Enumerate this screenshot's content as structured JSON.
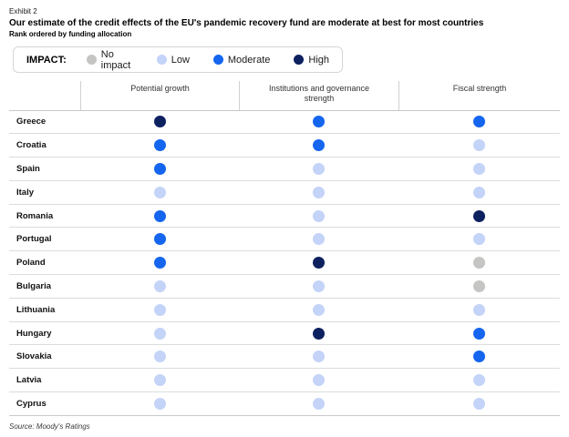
{
  "exhibit_label": "Exhibit 2",
  "title": "Our estimate of the credit effects of the EU's pandemic recovery fund are moderate at best for most countries",
  "subtitle": "Rank ordered by funding allocation",
  "legend": {
    "label": "IMPACT:",
    "items": [
      {
        "key": "no_impact",
        "label": "No impact"
      },
      {
        "key": "low",
        "label": "Low"
      },
      {
        "key": "moderate",
        "label": "Moderate"
      },
      {
        "key": "high",
        "label": "High"
      }
    ]
  },
  "colors": {
    "no_impact": "#c5c5c3",
    "low": "#c4d3f8",
    "moderate": "#1565ef",
    "high": "#0d2160"
  },
  "source": "Source: Moody's Ratings",
  "chart_data": {
    "type": "table",
    "title": "Our estimate of the credit effects of the EU's pandemic recovery fund are moderate at best for most countries",
    "subtitle": "Rank ordered by funding allocation",
    "impact_levels": [
      "No impact",
      "Low",
      "Moderate",
      "High"
    ],
    "columns": [
      "Potential growth",
      "Institutions and governance strength",
      "Fiscal strength"
    ],
    "rows": [
      {
        "country": "Greece",
        "values": [
          "high",
          "moderate",
          "moderate"
        ]
      },
      {
        "country": "Croatia",
        "values": [
          "moderate",
          "moderate",
          "low"
        ]
      },
      {
        "country": "Spain",
        "values": [
          "moderate",
          "low",
          "low"
        ]
      },
      {
        "country": "Italy",
        "values": [
          "low",
          "low",
          "low"
        ]
      },
      {
        "country": "Romania",
        "values": [
          "moderate",
          "low",
          "high"
        ]
      },
      {
        "country": "Portugal",
        "values": [
          "moderate",
          "low",
          "low"
        ]
      },
      {
        "country": "Poland",
        "values": [
          "moderate",
          "high",
          "no_impact"
        ]
      },
      {
        "country": "Bulgaria",
        "values": [
          "low",
          "low",
          "no_impact"
        ]
      },
      {
        "country": "Lithuania",
        "values": [
          "low",
          "low",
          "low"
        ]
      },
      {
        "country": "Hungary",
        "values": [
          "low",
          "high",
          "moderate"
        ]
      },
      {
        "country": "Slovakia",
        "values": [
          "low",
          "low",
          "moderate"
        ]
      },
      {
        "country": "Latvia",
        "values": [
          "low",
          "low",
          "low"
        ]
      },
      {
        "country": "Cyprus",
        "values": [
          "low",
          "low",
          "low"
        ]
      }
    ],
    "source": "Source: Moody's Ratings"
  }
}
